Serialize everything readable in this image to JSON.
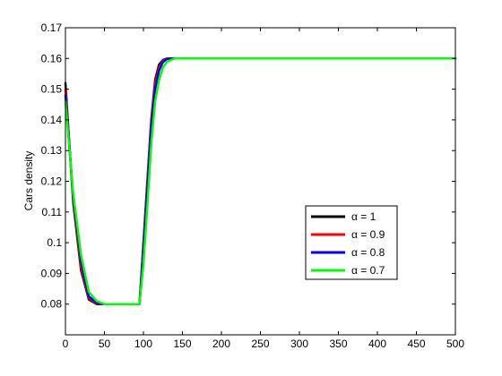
{
  "chart_data": {
    "type": "line",
    "ylabel": "Cars density",
    "xlabel": "",
    "xlim": [
      0,
      500
    ],
    "ylim": [
      0.07,
      0.17
    ],
    "xticks": [
      0,
      50,
      100,
      150,
      200,
      250,
      300,
      350,
      400,
      450,
      500
    ],
    "yticks": [
      0.08,
      0.09,
      0.1,
      0.11,
      0.12,
      0.13,
      0.14,
      0.15,
      0.16,
      0.17
    ],
    "ytick_labels": [
      "0.08",
      "0.09",
      "0.1",
      "0.11",
      "0.12",
      "0.13",
      "0.14",
      "0.15",
      "0.16",
      "0.17"
    ],
    "xtick_labels": [
      "0",
      "50",
      "100",
      "150",
      "200",
      "250",
      "300",
      "350",
      "400",
      "450",
      "500"
    ],
    "grid": false,
    "legend_position": "lower-right",
    "series": [
      {
        "name": "α = 1",
        "color": "#000000",
        "x": [
          0,
          3,
          10,
          20,
          30,
          40,
          50,
          60,
          70,
          80,
          90,
          95,
          100,
          105,
          110,
          115,
          120,
          125,
          130,
          135,
          140,
          150,
          200,
          300,
          400,
          500
        ],
        "y": [
          0.152,
          0.14,
          0.113,
          0.091,
          0.0815,
          0.08,
          0.08,
          0.08,
          0.08,
          0.08,
          0.08,
          0.08,
          0.1,
          0.12,
          0.14,
          0.153,
          0.158,
          0.1595,
          0.16,
          0.16,
          0.16,
          0.16,
          0.16,
          0.16,
          0.16,
          0.16
        ]
      },
      {
        "name": "α = 0.9",
        "color": "#ff0000",
        "x": [
          0,
          3,
          10,
          20,
          30,
          40,
          50,
          60,
          70,
          80,
          90,
          95,
          100,
          105,
          110,
          115,
          120,
          125,
          130,
          135,
          140,
          150,
          200,
          300,
          400,
          500
        ],
        "y": [
          0.15,
          0.139,
          0.114,
          0.092,
          0.082,
          0.0802,
          0.08,
          0.08,
          0.08,
          0.08,
          0.08,
          0.08,
          0.099,
          0.119,
          0.139,
          0.152,
          0.157,
          0.1592,
          0.16,
          0.16,
          0.16,
          0.16,
          0.16,
          0.16,
          0.16,
          0.16
        ]
      },
      {
        "name": "α = 0.8",
        "color": "#0000ff",
        "x": [
          0,
          3,
          10,
          20,
          30,
          40,
          50,
          60,
          70,
          80,
          90,
          95,
          100,
          105,
          110,
          115,
          120,
          125,
          130,
          135,
          140,
          150,
          200,
          300,
          400,
          500
        ],
        "y": [
          0.148,
          0.138,
          0.115,
          0.094,
          0.0825,
          0.0805,
          0.08,
          0.08,
          0.08,
          0.08,
          0.08,
          0.08,
          0.097,
          0.117,
          0.137,
          0.15,
          0.156,
          0.1588,
          0.1598,
          0.16,
          0.16,
          0.16,
          0.16,
          0.16,
          0.16,
          0.16
        ]
      },
      {
        "name": "α = 0.7",
        "color": "#00ff00",
        "x": [
          0,
          3,
          10,
          20,
          30,
          40,
          50,
          60,
          70,
          80,
          90,
          95,
          100,
          105,
          110,
          115,
          120,
          125,
          130,
          135,
          140,
          150,
          200,
          300,
          400,
          500
        ],
        "y": [
          0.146,
          0.137,
          0.116,
          0.096,
          0.084,
          0.081,
          0.08,
          0.08,
          0.08,
          0.08,
          0.08,
          0.08,
          0.093,
          0.112,
          0.132,
          0.146,
          0.153,
          0.157,
          0.1588,
          0.1595,
          0.16,
          0.16,
          0.16,
          0.16,
          0.16,
          0.16
        ]
      }
    ]
  }
}
